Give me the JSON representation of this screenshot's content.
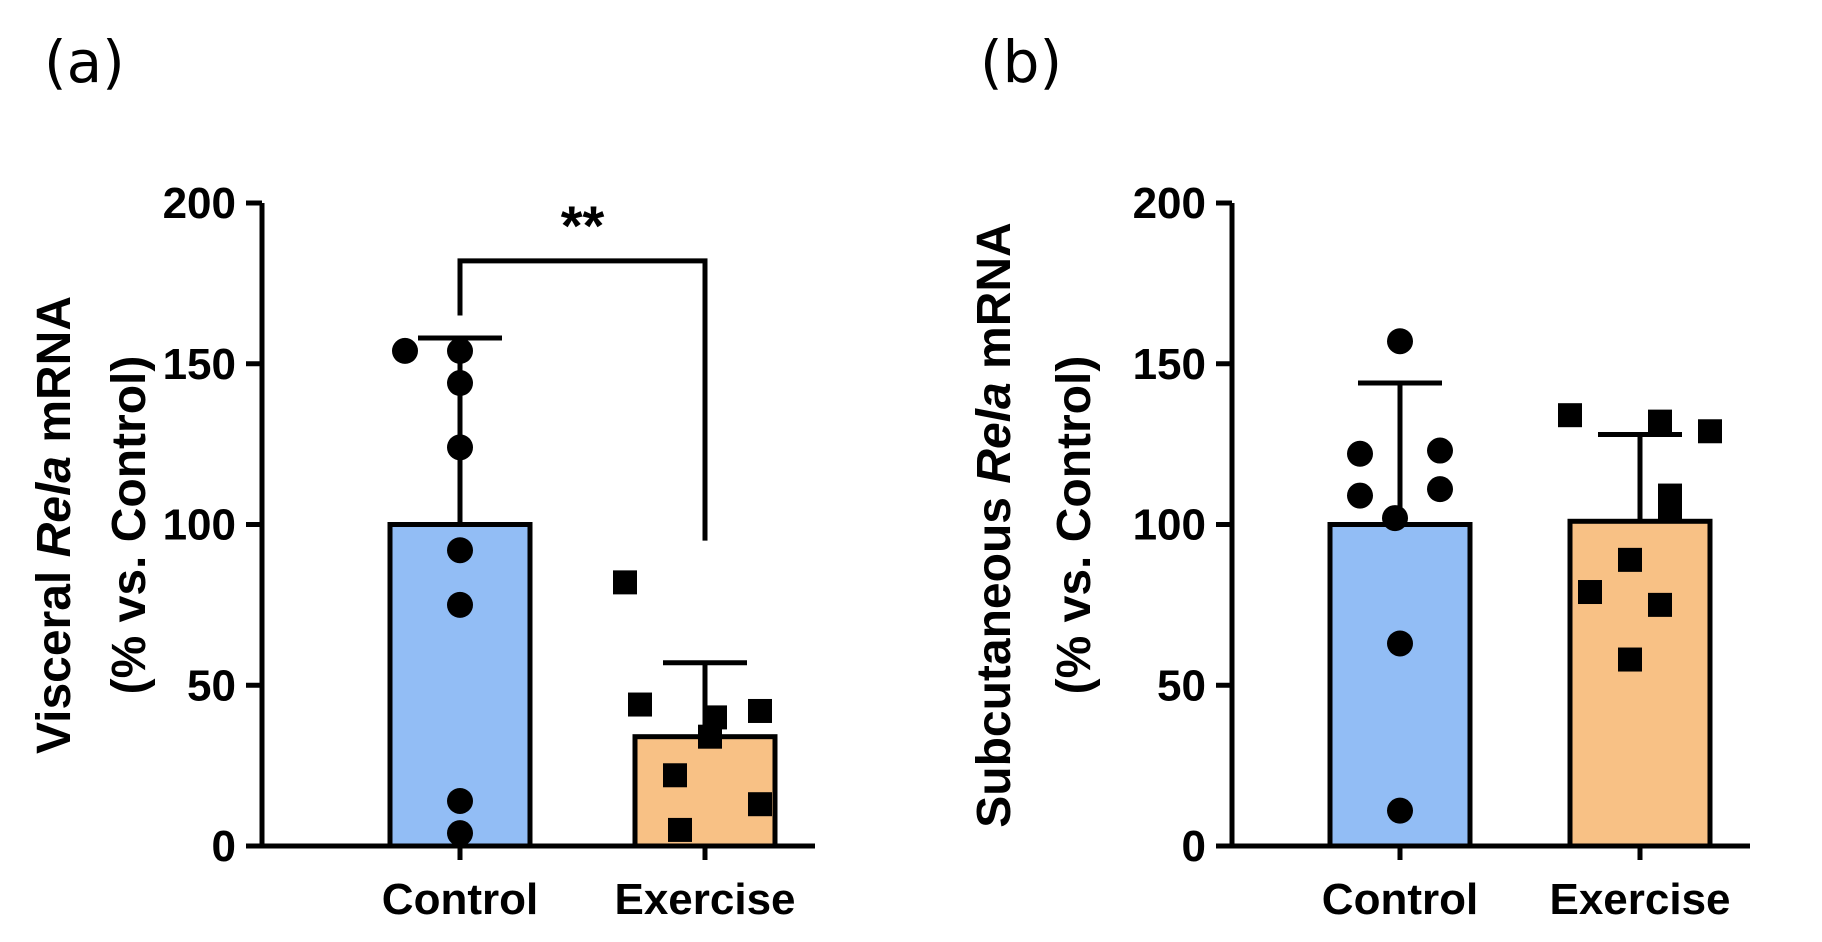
{
  "chart_data": [
    {
      "panel": "(a)",
      "type": "bar",
      "categories": [
        "Control",
        "Exercise"
      ],
      "ylabel": {
        "prefix": "Visceral ",
        "gene": "Rela",
        "suffix": " mRNA",
        "line2": "(% vs. Control)"
      },
      "ylim": [
        0,
        200
      ],
      "yticks": [
        0,
        50,
        100,
        150,
        200
      ],
      "means": [
        100,
        34
      ],
      "error_upper": [
        158,
        57
      ],
      "points": [
        [
          154,
          154,
          144,
          124,
          92,
          75,
          14,
          4
        ],
        [
          82,
          44,
          42,
          40,
          34,
          22,
          13,
          5
        ]
      ],
      "colors": [
        "#92bdf5",
        "#f8c185"
      ],
      "markers": [
        "circle",
        "square"
      ],
      "significance": "**"
    },
    {
      "panel": "(b)",
      "type": "bar",
      "categories": [
        "Control",
        "Exercise"
      ],
      "ylabel": {
        "prefix": "Subcutaneous ",
        "gene": "Rela",
        "suffix": " mRNA",
        "line2": "(% vs. Control)"
      },
      "ylim": [
        0,
        200
      ],
      "yticks": [
        0,
        50,
        100,
        150,
        200
      ],
      "means": [
        100,
        101
      ],
      "error_upper": [
        144,
        128
      ],
      "points": [
        [
          157,
          123,
          122,
          111,
          109,
          102,
          63,
          11
        ],
        [
          134,
          132,
          129,
          109,
          105,
          89,
          79,
          75,
          58
        ]
      ],
      "colors": [
        "#92bdf5",
        "#f8c185"
      ],
      "markers": [
        "circle",
        "square"
      ],
      "significance": ""
    }
  ]
}
